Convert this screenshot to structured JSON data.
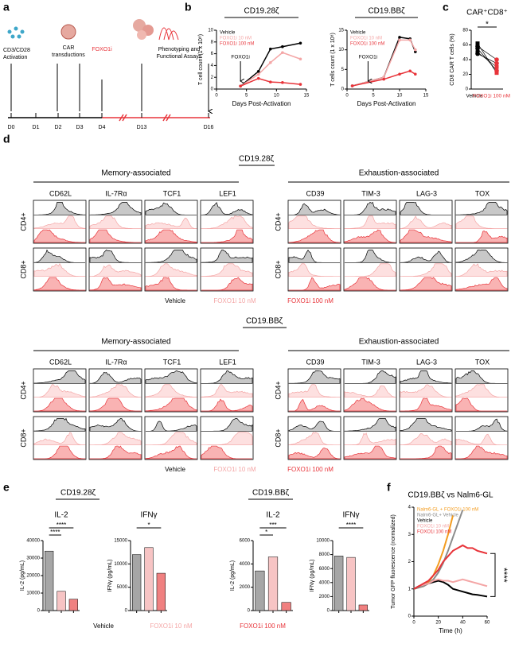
{
  "panel_labels": [
    "a",
    "b",
    "c",
    "d",
    "e",
    "f"
  ],
  "timeline": {
    "days": [
      "D0",
      "D1",
      "D2",
      "D3",
      "D4",
      "D13",
      "D16"
    ],
    "annotations": [
      "CD3/CD28",
      "Activation",
      "CAR",
      "transductions",
      "FOXO1i",
      "Phenotyping and",
      "Functional Assays"
    ]
  },
  "flow": {
    "constructs": [
      "CD19.28ζ",
      "CD19.BBζ"
    ],
    "groups": [
      "Memory-associated",
      "Exhaustion-associated"
    ],
    "markers": [
      "CD62L",
      "IL-7Rα",
      "TCF1",
      "LEF1",
      "CD39",
      "TIM-3",
      "LAG-3",
      "TOX"
    ],
    "rows": [
      "CD4+",
      "CD8+"
    ],
    "legend": [
      "Vehicle",
      "FOXO1i 10 nM",
      "FOXO1i 100 nM"
    ]
  },
  "cytokines": {
    "constructs": [
      "CD19.28ζ",
      "CD19.BBζ"
    ],
    "legend": [
      "Vehicle",
      "FOXO1i 10 nM",
      "FOXO1i 100 nM"
    ]
  },
  "chart_data": [
    {
      "type": "line",
      "title": "CD19.28ζ",
      "xlabel": "Days Post-Activation",
      "ylabel": "T cell count (1 x 10⁸)",
      "x": [
        4,
        7,
        9,
        11,
        14
      ],
      "xlim": [
        0,
        15
      ],
      "xticks": [
        0,
        5,
        10,
        15
      ],
      "ylim": [
        0,
        10
      ],
      "yticks": [
        0,
        2,
        4,
        6,
        8,
        10
      ],
      "legend": "upper left",
      "markers": true,
      "annotations": [
        "FOXO1i"
      ],
      "series": [
        {
          "name": "Vehicle",
          "color": "#000000",
          "values": [
            0.5,
            3,
            6.8,
            7.2,
            7.8
          ]
        },
        {
          "name": "FOXO1i 10 nM",
          "color": "#f4a6a6",
          "values": [
            0.5,
            2.5,
            4.5,
            6.2,
            5.1
          ]
        },
        {
          "name": "FOXO1i 100 nM",
          "color": "#e8343a",
          "values": [
            0.5,
            1.8,
            1.2,
            1.1,
            0.8
          ]
        }
      ]
    },
    {
      "type": "line",
      "title": "CD19.BBζ",
      "xlabel": "Days Post-Activation",
      "ylabel": "T cells count (1 x 10⁸)",
      "x": [
        1,
        7,
        10,
        12,
        13
      ],
      "xlim": [
        0,
        15
      ],
      "xticks": [
        0,
        5,
        10,
        15
      ],
      "ylim": [
        0,
        15
      ],
      "yticks": [
        0,
        5,
        10,
        15
      ],
      "legend": "upper left",
      "markers": true,
      "annotations": [
        "FOXO1i"
      ],
      "series": [
        {
          "name": "Vehicle",
          "color": "#000000",
          "values": [
            0.8,
            3,
            13.2,
            12.8,
            9.5
          ]
        },
        {
          "name": "FOXO1i 10 nM",
          "color": "#f4a6a6",
          "values": [
            0.8,
            3,
            12.5,
            12.5,
            10
          ]
        },
        {
          "name": "FOXO1i 100 nM",
          "color": "#e8343a",
          "values": [
            0.8,
            2.5,
            3.8,
            4.6,
            3.8
          ]
        }
      ]
    },
    {
      "type": "paired-dot",
      "title": "CAR⁺CD8⁺",
      "ylabel": "CD8 CAR T cells (%)",
      "categories": [
        "Vehicle",
        "FOXO1i 100 nM"
      ],
      "colors": [
        "#000000",
        "#e8343a"
      ],
      "values": [
        [
          58,
          50,
          55,
          62,
          48
        ],
        [
          40,
          30,
          25,
          22,
          35
        ]
      ],
      "ylim": [
        0,
        80
      ],
      "yticks": [
        0,
        20,
        40,
        60,
        80
      ],
      "annotations": [
        "*"
      ]
    },
    {
      "type": "bar",
      "title": "IL-2",
      "ylabel": "IL-2 (pg/mL)",
      "categories": [
        null,
        null,
        null
      ],
      "values": [
        34000,
        11000,
        6500
      ],
      "colors": [
        "#a6a6a6",
        "#f7c4c4",
        "#f08080"
      ],
      "ylim": [
        0,
        40000
      ],
      "yticks": [
        0,
        10000,
        20000,
        30000,
        40000
      ],
      "annotations": [
        "****",
        "****"
      ]
    },
    {
      "type": "bar",
      "title": "IFNγ",
      "ylabel": "IFNγ (pg/mL)",
      "categories": [
        null,
        null,
        null
      ],
      "values": [
        12000,
        13500,
        8000
      ],
      "colors": [
        "#a6a6a6",
        "#f7c4c4",
        "#f08080"
      ],
      "ylim": [
        0,
        15000
      ],
      "yticks": [
        0,
        5000,
        10000,
        15000
      ],
      "annotations": [
        "*"
      ]
    },
    {
      "type": "bar",
      "title": "IL-2",
      "ylabel": "IL-2 (pg/mL)",
      "categories": [
        null,
        null,
        null
      ],
      "values": [
        3400,
        4600,
        700
      ],
      "colors": [
        "#a6a6a6",
        "#f7c4c4",
        "#f08080"
      ],
      "ylim": [
        0,
        6000
      ],
      "yticks": [
        0,
        2000,
        4000,
        6000
      ],
      "annotations": [
        "***",
        "*"
      ]
    },
    {
      "type": "bar",
      "title": "IFNγ",
      "ylabel": "IFNγ (pg/mL)",
      "categories": [
        null,
        null,
        null
      ],
      "values": [
        7800,
        7600,
        800
      ],
      "colors": [
        "#a6a6a6",
        "#f7c4c4",
        "#f08080"
      ],
      "ylim": [
        0,
        10000
      ],
      "yticks": [
        0,
        2000,
        4000,
        6000,
        8000,
        10000
      ],
      "annotations": [
        "****"
      ]
    },
    {
      "type": "line",
      "title": "CD19.BBζ vs Nalm6-GL",
      "xlabel": "Time (h)",
      "ylabel": "Tumor GFP fluorescence (normalized)",
      "x": [
        0,
        4,
        8,
        12,
        16,
        20,
        24,
        28,
        32,
        36,
        40,
        44,
        48,
        52,
        56,
        60
      ],
      "xlim": [
        0,
        60
      ],
      "xticks": [
        0,
        20,
        40,
        60
      ],
      "ylim": [
        0,
        4
      ],
      "yticks": [
        0,
        1,
        2,
        3,
        4
      ],
      "legend": "upper left",
      "markers": false,
      "annotations": [
        "****"
      ],
      "series": [
        {
          "name": "Nalm6-GL + FOXO1i 100 nM",
          "color": "#f39c1f",
          "values": [
            1,
            1.05,
            1.1,
            1.25,
            1.5,
            1.9,
            2.4,
            3.0,
            3.7,
            null,
            null,
            null,
            null,
            null,
            null,
            null
          ]
        },
        {
          "name": "Nalm6-GL+ Vehicle",
          "color": "#8c8c8c",
          "values": [
            1,
            1.05,
            1.1,
            1.2,
            1.35,
            1.6,
            1.95,
            2.4,
            2.9,
            3.4,
            3.9,
            null,
            null,
            null,
            null,
            null
          ]
        },
        {
          "name": "Vehicle",
          "color": "#000000",
          "values": [
            1,
            1.1,
            1.15,
            1.2,
            1.25,
            1.3,
            1.25,
            1.15,
            1.0,
            0.95,
            0.9,
            0.85,
            0.8,
            0.78,
            0.75,
            0.72
          ]
        },
        {
          "name": "FOXO1i 10 nM",
          "color": "#f4a6a6",
          "values": [
            1,
            1.1,
            1.15,
            1.2,
            1.3,
            1.35,
            1.3,
            1.3,
            1.25,
            1.3,
            1.35,
            1.3,
            1.25,
            1.2,
            1.15,
            1.1
          ]
        },
        {
          "name": "FOXO1i 100 nM",
          "color": "#e8343a",
          "values": [
            1,
            1.1,
            1.2,
            1.3,
            1.5,
            1.7,
            2.0,
            2.2,
            2.4,
            2.5,
            2.6,
            2.5,
            2.5,
            2.4,
            2.35,
            2.3
          ]
        }
      ]
    }
  ]
}
